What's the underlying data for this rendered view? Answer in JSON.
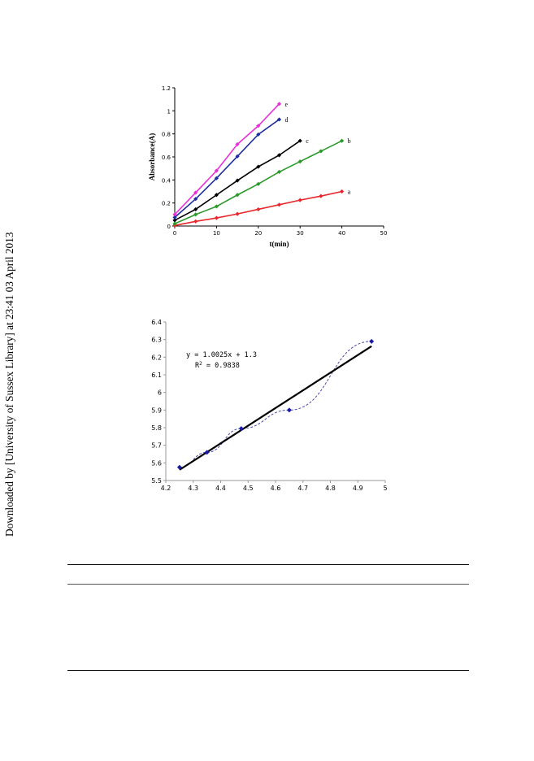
{
  "side_note": "Downloaded by [University of Sussex Library] at 23:41 03 April 2013",
  "chart_data": [
    {
      "type": "line",
      "title": "",
      "xlabel": "t(min)",
      "ylabel": "Absorbance(A)",
      "xlim": [
        0,
        50
      ],
      "ylim": [
        0,
        1.2
      ],
      "x_ticks": [
        "0",
        "10",
        "20",
        "30",
        "40",
        "50"
      ],
      "y_ticks": [
        "0",
        "0.2",
        "0.4",
        "0.6",
        "0.8",
        "1",
        "1.2"
      ],
      "grid": false,
      "series": [
        {
          "name": "a",
          "color": "#e8262b",
          "x": [
            0,
            5,
            10,
            15,
            20,
            25,
            30,
            35,
            40
          ],
          "y": [
            0.005,
            0.04,
            0.07,
            0.105,
            0.145,
            0.185,
            0.225,
            0.26,
            0.3
          ]
        },
        {
          "name": "b",
          "color": "#2a9a2a",
          "x": [
            0,
            5,
            10,
            15,
            20,
            25,
            30,
            35,
            40
          ],
          "y": [
            0.02,
            0.1,
            0.17,
            0.27,
            0.365,
            0.47,
            0.56,
            0.65,
            0.74
          ]
        },
        {
          "name": "c",
          "color": "#000000",
          "x": [
            0,
            5,
            10,
            15,
            20,
            25,
            30
          ],
          "y": [
            0.05,
            0.145,
            0.27,
            0.395,
            0.515,
            0.615,
            0.74
          ]
        },
        {
          "name": "d",
          "color": "#1f2f9e",
          "x": [
            0,
            5,
            10,
            15,
            20,
            25
          ],
          "y": [
            0.075,
            0.235,
            0.415,
            0.605,
            0.795,
            0.925
          ]
        },
        {
          "name": "e",
          "color": "#e830d8",
          "x": [
            0,
            5,
            10,
            15,
            20,
            25
          ],
          "y": [
            0.1,
            0.29,
            0.48,
            0.71,
            0.87,
            1.06
          ]
        }
      ]
    },
    {
      "type": "scatter",
      "title": "",
      "xlabel": "",
      "ylabel": "",
      "xlim": [
        4.2,
        5
      ],
      "ylim": [
        5.5,
        6.4
      ],
      "x_ticks": [
        "4.2",
        "4.3",
        "4.4",
        "4.5",
        "4.6",
        "4.7",
        "4.8",
        "4.9",
        "5"
      ],
      "y_ticks": [
        "5.5",
        "5.6",
        "5.7",
        "5.8",
        "5.9",
        "6",
        "6.1",
        "6.2",
        "6.3",
        "6.4"
      ],
      "grid": false,
      "points": {
        "color": "#1a1aa8",
        "x": [
          4.25,
          4.35,
          4.475,
          4.65,
          4.95
        ],
        "y": [
          5.575,
          5.66,
          5.795,
          5.9,
          6.29
        ]
      },
      "trendline": {
        "slope": 1.0025,
        "intercept": 1.3,
        "x_range": [
          4.25,
          4.95
        ],
        "color": "#000000"
      },
      "equation": "y = 1.0025x + 1.3",
      "r_squared_label": "R",
      "r_squared_sup": "2",
      "r_squared_value": " = 0.9838"
    }
  ]
}
